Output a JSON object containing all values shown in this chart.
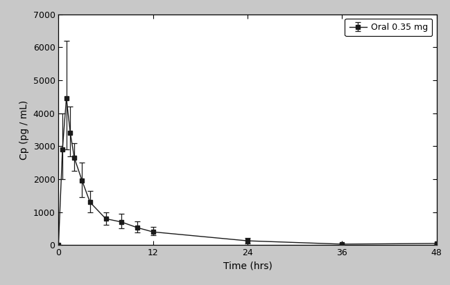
{
  "xlabel": "Time (hrs)",
  "ylabel": "Cp (pg / mL)",
  "legend_label": "Oral 0.35 mg",
  "x": [
    0,
    0.5,
    1,
    1.5,
    2,
    3,
    4,
    6,
    8,
    10,
    12,
    24,
    36,
    48
  ],
  "y": [
    0,
    2900,
    4450,
    3400,
    2650,
    1950,
    1300,
    800,
    700,
    530,
    400,
    130,
    30,
    50
  ],
  "yerr_low": [
    0,
    900,
    1550,
    700,
    400,
    500,
    300,
    180,
    200,
    150,
    100,
    80,
    15,
    20
  ],
  "yerr_high": [
    0,
    1100,
    1750,
    800,
    450,
    550,
    350,
    200,
    250,
    200,
    150,
    80,
    15,
    20
  ],
  "xlim": [
    0,
    48
  ],
  "ylim": [
    0,
    7000
  ],
  "xticks": [
    0,
    12,
    24,
    36,
    48
  ],
  "yticks": [
    0,
    1000,
    2000,
    3000,
    4000,
    5000,
    6000,
    7000
  ],
  "line_color": "#1a1a1a",
  "marker": "s",
  "markersize": 5,
  "plot_bg": "#ffffff",
  "fig_bg": "#c8c8c8"
}
